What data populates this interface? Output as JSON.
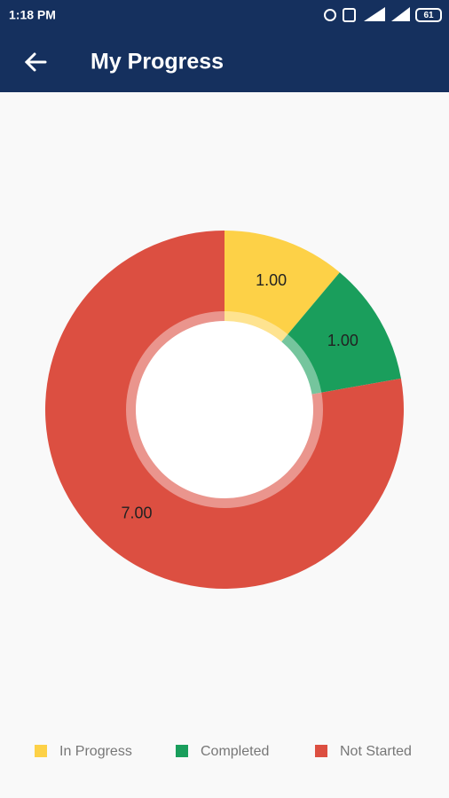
{
  "status_bar": {
    "time": "1:18 PM",
    "battery": "61"
  },
  "app_bar": {
    "title": "My Progress"
  },
  "chart_data": {
    "type": "pie",
    "donut": true,
    "categories": [
      "In Progress",
      "Completed",
      "Not Started"
    ],
    "values": [
      1,
      1,
      7
    ],
    "value_labels": [
      "1.00",
      "1.00",
      "7.00"
    ],
    "colors": [
      "#fdd147",
      "#1a9e5c",
      "#dc4f41"
    ]
  }
}
